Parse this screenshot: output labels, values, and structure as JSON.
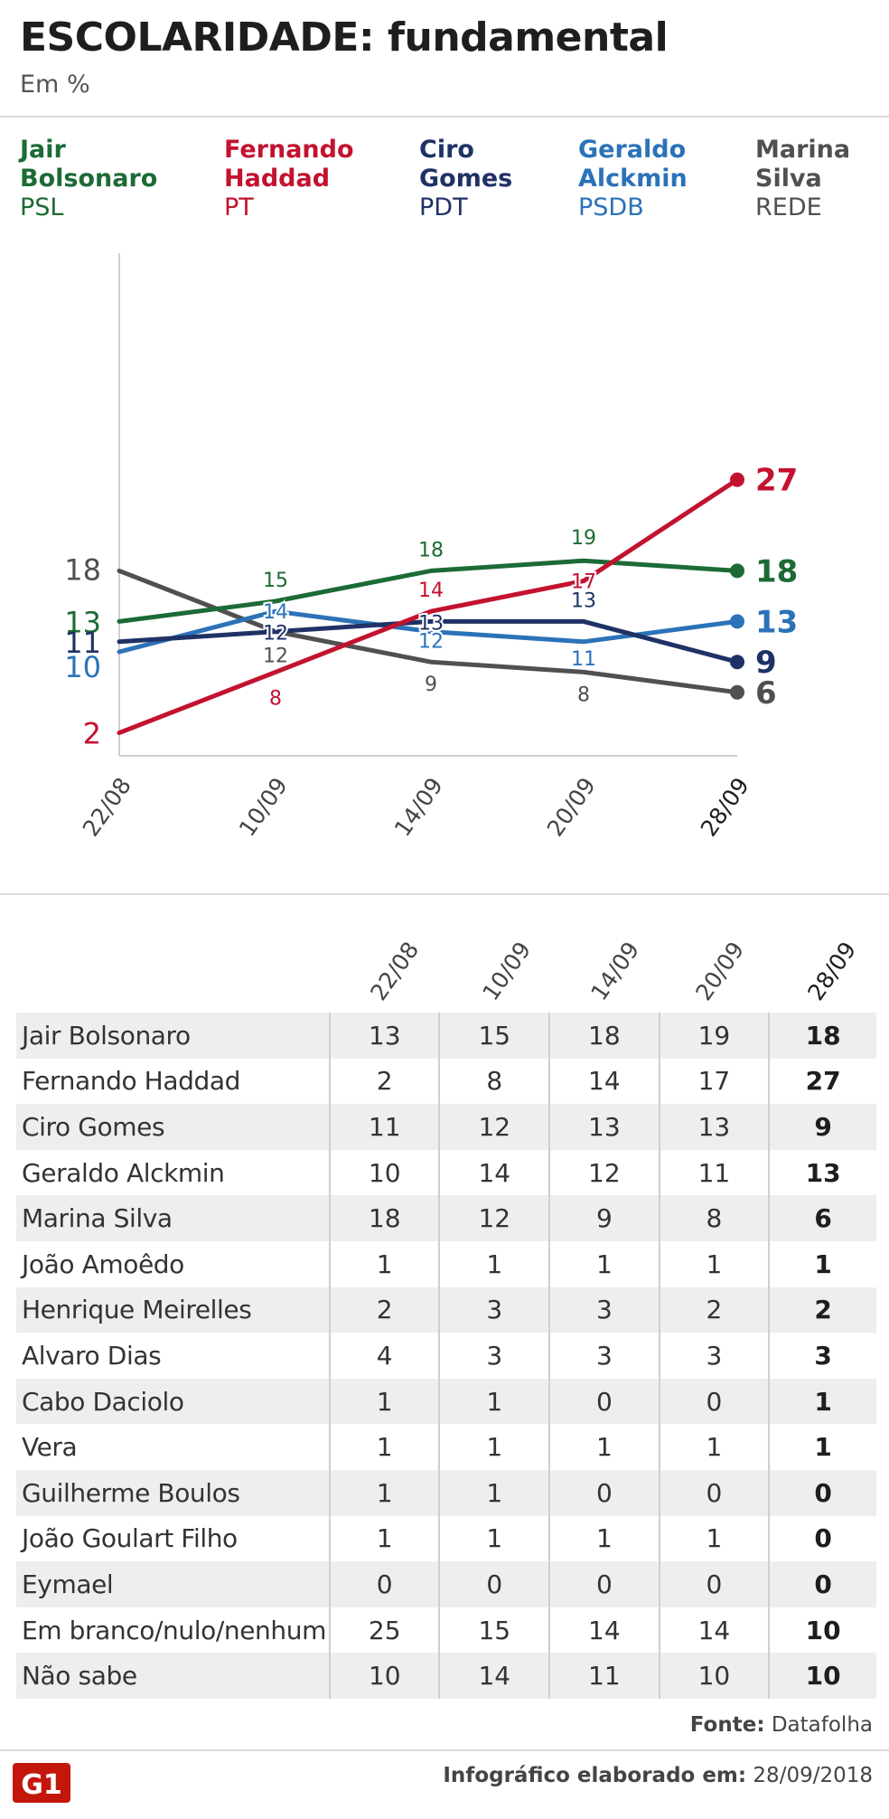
{
  "header": {
    "title": "ESCOLARIDADE: fundamental",
    "subtitle": "Em %"
  },
  "colors": {
    "bolsonaro": "#1c6b35",
    "haddad": "#c3122f",
    "ciro": "#1f3266",
    "alckmin": "#2b72b8",
    "marina": "#505050"
  },
  "legend": [
    {
      "first": "Jair",
      "last": "Bolsonaro",
      "party": "PSL"
    },
    {
      "first": "Fernando",
      "last": "Haddad",
      "party": "PT"
    },
    {
      "first": "Ciro",
      "last": "Gomes",
      "party": "PDT"
    },
    {
      "first": "Geraldo",
      "last": "Alckmin",
      "party": "PSDB"
    },
    {
      "first": "Marina",
      "last": "Silva",
      "party": "REDE"
    }
  ],
  "chart_data": {
    "type": "line",
    "title": "ESCOLARIDADE: fundamental",
    "ylabel": "Em %",
    "categories": [
      "22/08",
      "10/09",
      "14/09",
      "20/09",
      "28/09"
    ],
    "series": [
      {
        "name": "Jair Bolsonaro",
        "key": "bolsonaro",
        "values": [
          13,
          15,
          18,
          19,
          18
        ]
      },
      {
        "name": "Fernando Haddad",
        "key": "haddad",
        "values": [
          2,
          8,
          14,
          17,
          27
        ]
      },
      {
        "name": "Ciro Gomes",
        "key": "ciro",
        "values": [
          11,
          12,
          13,
          13,
          9
        ]
      },
      {
        "name": "Geraldo Alckmin",
        "key": "alckmin",
        "values": [
          10,
          14,
          12,
          11,
          13
        ]
      },
      {
        "name": "Marina Silva",
        "key": "marina",
        "values": [
          18,
          12,
          9,
          8,
          6
        ]
      }
    ],
    "ylim": [
      0,
      35
    ],
    "grid": false
  },
  "table": {
    "columns": [
      "22/08",
      "10/09",
      "14/09",
      "20/09",
      "28/09"
    ],
    "rows": [
      {
        "name": "Jair Bolsonaro",
        "values": [
          "13",
          "15",
          "18",
          "19",
          "18"
        ]
      },
      {
        "name": "Fernando Haddad",
        "values": [
          "2",
          "8",
          "14",
          "17",
          "27"
        ]
      },
      {
        "name": "Ciro Gomes",
        "values": [
          "11",
          "12",
          "13",
          "13",
          "9"
        ]
      },
      {
        "name": "Geraldo Alckmin",
        "values": [
          "10",
          "14",
          "12",
          "11",
          "13"
        ]
      },
      {
        "name": "Marina Silva",
        "values": [
          "18",
          "12",
          "9",
          "8",
          "6"
        ]
      },
      {
        "name": "João Amoêdo",
        "values": [
          "1",
          "1",
          "1",
          "1",
          "1"
        ]
      },
      {
        "name": "Henrique Meirelles",
        "values": [
          "2",
          "3",
          "3",
          "2",
          "2"
        ]
      },
      {
        "name": "Alvaro Dias",
        "values": [
          "4",
          "3",
          "3",
          "3",
          "3"
        ]
      },
      {
        "name": "Cabo Daciolo",
        "values": [
          "1",
          "1",
          "0",
          "0",
          "1"
        ]
      },
      {
        "name": "Vera",
        "values": [
          "1",
          "1",
          "1",
          "1",
          "1"
        ]
      },
      {
        "name": "Guilherme Boulos",
        "values": [
          "1",
          "1",
          "0",
          "0",
          "0"
        ]
      },
      {
        "name": "João Goulart Filho",
        "values": [
          "1",
          "1",
          "1",
          "1",
          "0"
        ]
      },
      {
        "name": "Eymael",
        "values": [
          "0",
          "0",
          "0",
          "0",
          "0"
        ]
      },
      {
        "name": "Em branco/nulo/nenhum",
        "values": [
          "25",
          "15",
          "14",
          "14",
          "10"
        ]
      },
      {
        "name": "Não sabe",
        "values": [
          "10",
          "14",
          "11",
          "10",
          "10"
        ]
      }
    ]
  },
  "footer": {
    "source_label": "Fonte:",
    "source_value": "Datafolha",
    "logo_text": "G1",
    "credit_label": "Infográfico elaborado em:",
    "credit_value": "28/09/2018"
  }
}
